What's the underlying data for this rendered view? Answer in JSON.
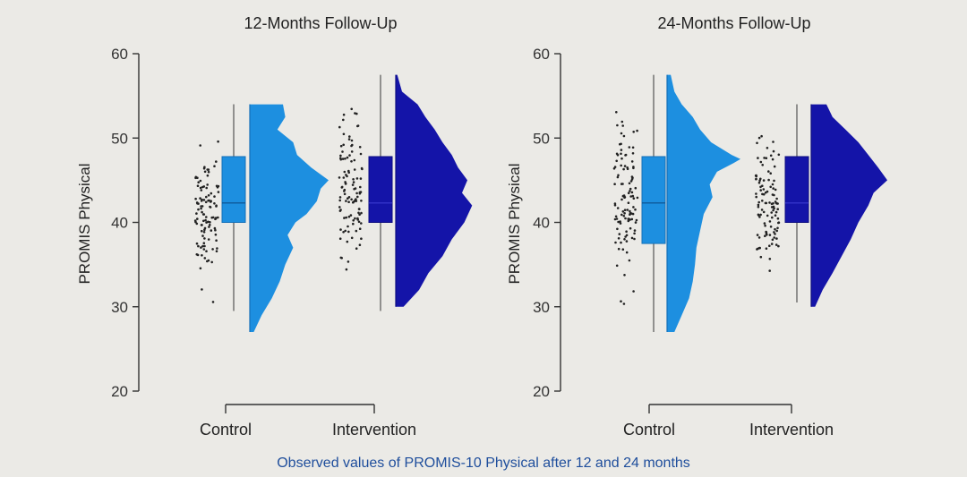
{
  "caption": "Observed values of PROMIS-10 Physical after 12 and 24 months",
  "colors": {
    "control": "#1d8fe0",
    "intervention": "#1414a8",
    "points": "#222222"
  },
  "chart_data": [
    {
      "type": "raincloud",
      "title": "12-Months Follow-Up",
      "ylabel": "PROMIS Physical",
      "ylim": [
        20,
        60
      ],
      "yticks": [
        20,
        30,
        40,
        50,
        60
      ],
      "categories": [
        "Control",
        "Intervention"
      ],
      "groups": [
        {
          "name": "Control",
          "box": {
            "q1": 40,
            "median": 42.3,
            "q3": 47.8,
            "whisker_low": 29.5,
            "whisker_high": 54
          },
          "density_y": [
            27,
            29,
            31,
            33,
            35,
            37,
            38.5,
            40,
            41,
            42.5,
            44,
            45,
            46.5,
            48,
            49.5,
            51,
            52.5,
            54
          ],
          "density_w": [
            0.05,
            0.15,
            0.28,
            0.38,
            0.45,
            0.55,
            0.48,
            0.58,
            0.72,
            0.85,
            0.9,
            1.0,
            0.78,
            0.6,
            0.55,
            0.35,
            0.45,
            0.42
          ],
          "points_range": [
            26,
            55
          ]
        },
        {
          "name": "Intervention",
          "box": {
            "q1": 40,
            "median": 42.3,
            "q3": 47.8,
            "whisker_low": 29.5,
            "whisker_high": 57.5
          },
          "density_y": [
            30,
            32,
            34,
            36,
            38,
            40,
            42,
            43.5,
            45,
            46.5,
            48,
            49.5,
            51,
            52.5,
            54,
            55.5,
            57.5
          ],
          "density_w": [
            0.1,
            0.3,
            0.42,
            0.6,
            0.72,
            0.88,
            0.98,
            0.85,
            0.92,
            0.8,
            0.72,
            0.6,
            0.5,
            0.38,
            0.28,
            0.08,
            0.02
          ],
          "points_range": [
            29,
            58.5
          ]
        }
      ]
    },
    {
      "type": "raincloud",
      "title": "24-Months Follow-Up",
      "ylabel": "PROMIS Physical",
      "ylim": [
        20,
        60
      ],
      "yticks": [
        20,
        30,
        40,
        50,
        60
      ],
      "categories": [
        "Control",
        "Intervention"
      ],
      "groups": [
        {
          "name": "Control",
          "box": {
            "q1": 37.5,
            "median": 42.3,
            "q3": 47.8,
            "whisker_low": 27,
            "whisker_high": 57.5
          },
          "density_y": [
            27,
            29,
            31,
            33,
            35,
            37,
            39,
            41,
            43,
            44.5,
            46,
            47,
            47.5,
            48,
            49.5,
            51,
            52.5,
            54,
            55.5,
            57.5
          ],
          "density_w": [
            0.1,
            0.2,
            0.3,
            0.35,
            0.38,
            0.4,
            0.45,
            0.5,
            0.62,
            0.58,
            0.68,
            0.9,
            1.0,
            0.88,
            0.6,
            0.45,
            0.35,
            0.2,
            0.1,
            0.05
          ],
          "points_range": [
            27,
            58.5
          ]
        },
        {
          "name": "Intervention",
          "box": {
            "q1": 40,
            "median": 42.3,
            "q3": 47.8,
            "whisker_low": 30.5,
            "whisker_high": 54
          },
          "density_y": [
            30,
            32,
            34,
            36,
            38,
            40,
            42,
            43.5,
            45,
            46.5,
            48,
            49.5,
            51,
            52.5,
            54
          ],
          "density_w": [
            0.05,
            0.15,
            0.28,
            0.4,
            0.52,
            0.62,
            0.75,
            0.82,
            1.0,
            0.88,
            0.75,
            0.62,
            0.45,
            0.28,
            0.2
          ],
          "points_range": [
            30,
            54.5
          ]
        }
      ]
    }
  ]
}
